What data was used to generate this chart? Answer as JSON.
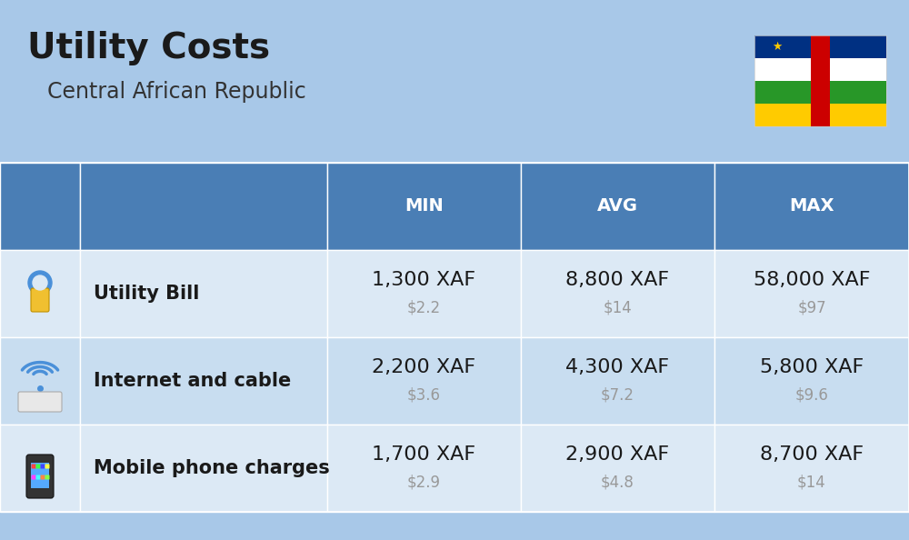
{
  "title": "Utility Costs",
  "subtitle": "Central African Republic",
  "background_color": "#a8c8e8",
  "header_bg_color": "#4a7eb5",
  "header_text_color": "#ffffff",
  "row_bg_color_1": "#dce9f5",
  "row_bg_color_2": "#c8ddf0",
  "col_header_labels": [
    "MIN",
    "AVG",
    "MAX"
  ],
  "rows": [
    {
      "label": "Utility Bill",
      "min_xaf": "1,300 XAF",
      "min_usd": "$2.2",
      "avg_xaf": "8,800 XAF",
      "avg_usd": "$14",
      "max_xaf": "58,000 XAF",
      "max_usd": "$97"
    },
    {
      "label": "Internet and cable",
      "min_xaf": "2,200 XAF",
      "min_usd": "$3.6",
      "avg_xaf": "4,300 XAF",
      "avg_usd": "$7.2",
      "max_xaf": "5,800 XAF",
      "max_usd": "$9.6"
    },
    {
      "label": "Mobile phone charges",
      "min_xaf": "1,700 XAF",
      "min_usd": "$2.9",
      "avg_xaf": "2,900 XAF",
      "avg_usd": "$4.8",
      "max_xaf": "8,700 XAF",
      "max_usd": "$14"
    }
  ],
  "title_fontsize": 28,
  "subtitle_fontsize": 17,
  "header_fontsize": 14,
  "cell_xaf_fontsize": 16,
  "cell_usd_fontsize": 12,
  "label_fontsize": 15,
  "usd_color": "#999999",
  "flag_blue": "#003082",
  "flag_white": "#ffffff",
  "flag_green": "#289728",
  "flag_yellow": "#ffcb00",
  "flag_red": "#cc0000"
}
